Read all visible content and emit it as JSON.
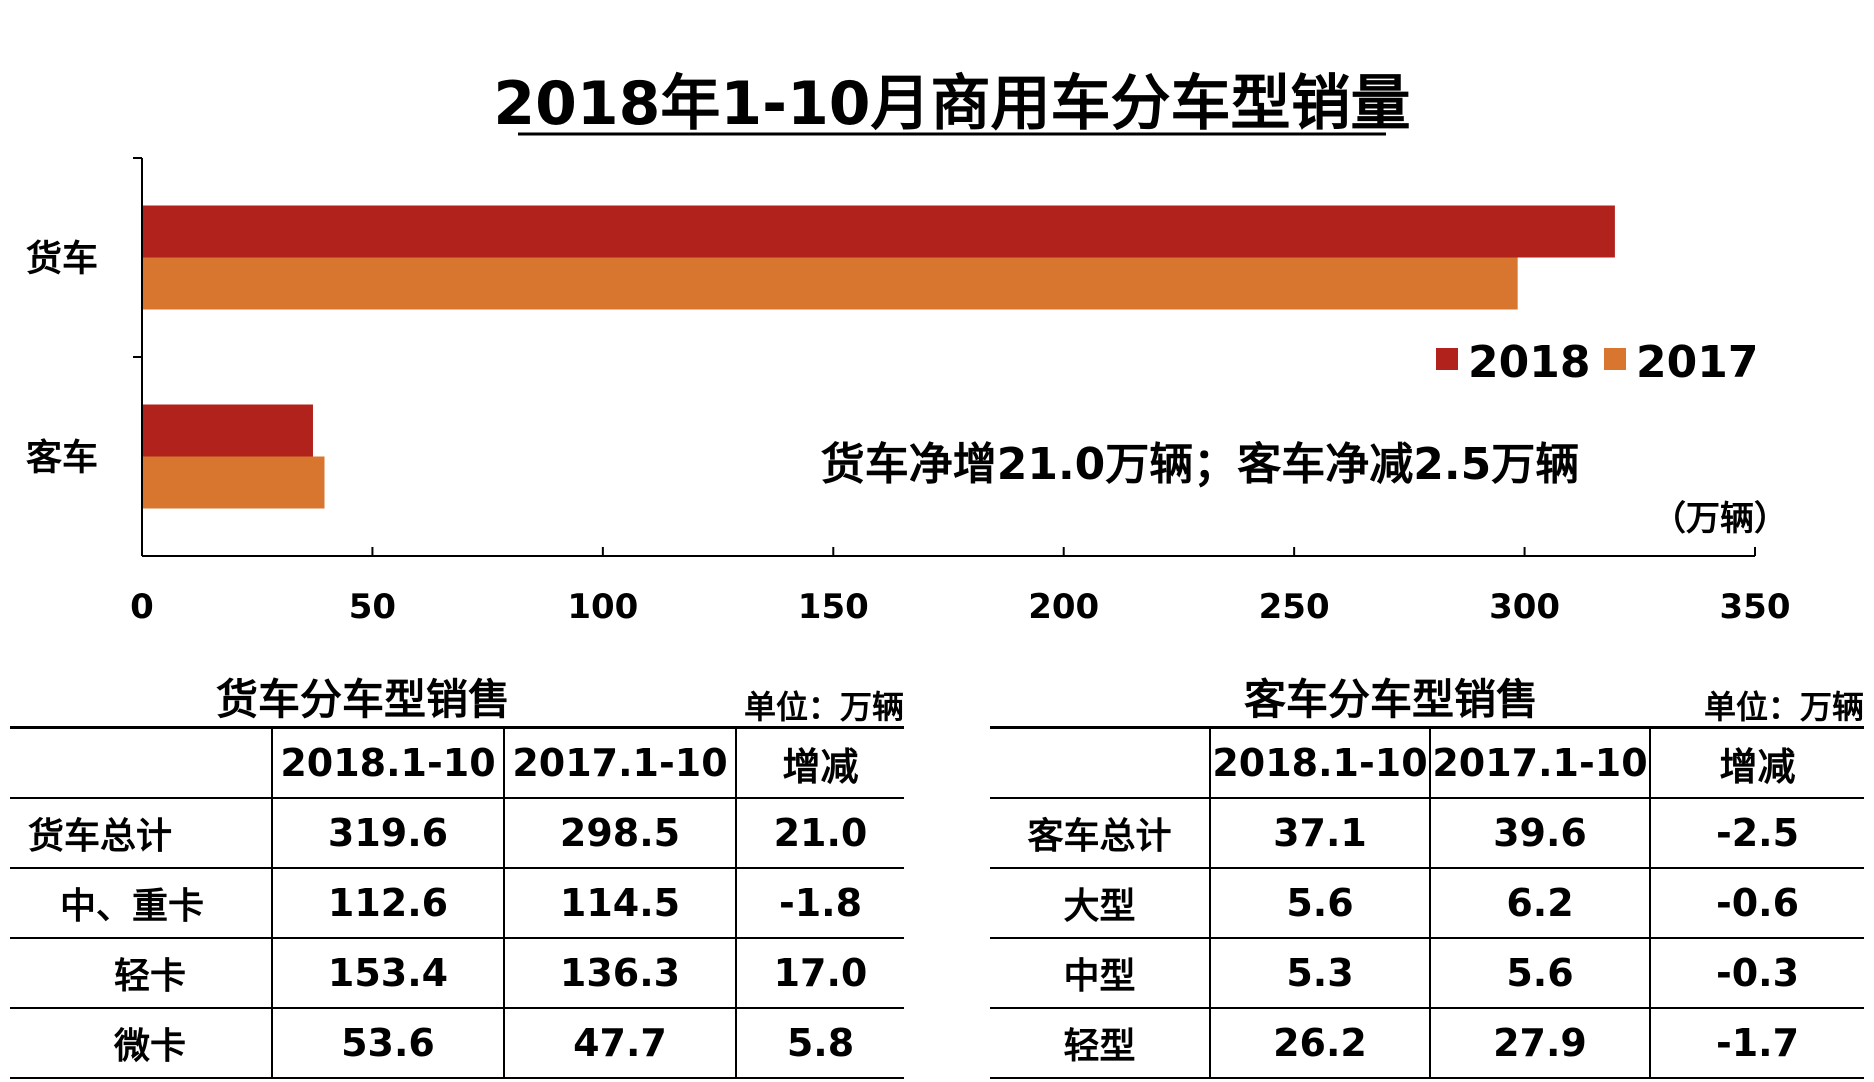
{
  "chart_data": {
    "type": "bar",
    "orientation": "horizontal",
    "title": "2018年1-10月商用车分车型销量",
    "categories": [
      "货车",
      "客车"
    ],
    "series": [
      {
        "name": "2018",
        "values": [
          319.6,
          37.1
        ],
        "color": "#b0221b"
      },
      {
        "name": "2017",
        "values": [
          298.5,
          39.6
        ],
        "color": "#d8752e"
      }
    ],
    "xlim": [
      0,
      350
    ],
    "xticks": [
      0,
      50,
      100,
      150,
      200,
      250,
      300,
      350
    ],
    "unit_label": "（万辆）",
    "annotation": "货车净增21.0万辆；客车净减2.5万辆",
    "legend_position": "right",
    "grid": false
  },
  "tables": {
    "truck": {
      "title": "货车分车型销售",
      "unit": "单位：万辆",
      "headers": [
        "",
        "2018.1-10",
        "2017.1-10",
        "增减"
      ],
      "rows": [
        [
          "货车总计",
          "319.6",
          "298.5",
          "21.0"
        ],
        [
          "中、重卡",
          "112.6",
          "114.5",
          "-1.8"
        ],
        [
          "轻卡",
          "153.4",
          "136.3",
          "17.0"
        ],
        [
          "微卡",
          "53.6",
          "47.7",
          "5.8"
        ]
      ]
    },
    "bus": {
      "title": "客车分车型销售",
      "unit": "单位：万辆",
      "headers": [
        "",
        "2018.1-10",
        "2017.1-10",
        "增减"
      ],
      "rows": [
        [
          "客车总计",
          "37.1",
          "39.6",
          "-2.5"
        ],
        [
          "大型",
          "5.6",
          "6.2",
          "-0.6"
        ],
        [
          "中型",
          "5.3",
          "5.6",
          "-0.3"
        ],
        [
          "轻型",
          "26.2",
          "27.9",
          "-1.7"
        ]
      ]
    }
  }
}
